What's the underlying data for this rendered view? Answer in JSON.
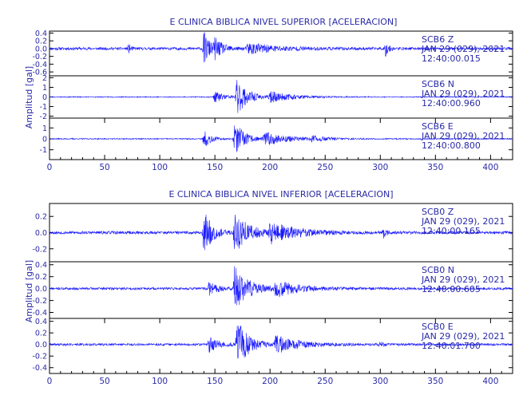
{
  "colors": {
    "trace": "#1a1aff",
    "text": "#2a2aa8",
    "axis": "#000000"
  },
  "chart_data": [
    {
      "type": "line",
      "title": "E CLINICA BIBLICA NIVEL SUPERIOR [ACELERACION]",
      "ylabel": "Amplitud [gal]",
      "xlim": [
        0,
        420
      ],
      "x_ticks": [
        0,
        50,
        100,
        150,
        200,
        250,
        300,
        350,
        400
      ],
      "series": [
        {
          "name": "SCB6 Z",
          "station": "SCB6",
          "component": "Z",
          "date": "JAN 29 (029), 2021",
          "time": "12:40:00.015",
          "ylim": [
            -0.7,
            0.45
          ],
          "y_ticks": [
            {
              "v": 0.4,
              "label": "0.4"
            },
            {
              "v": 0.2,
              "label": "0.2"
            },
            {
              "v": 0.0,
              "label": "0.0"
            },
            {
              "v": -0.2,
              "label": "-0.2"
            },
            {
              "v": -0.4,
              "label": "-0.4"
            },
            {
              "v": -0.6,
              "label": "-0.6"
            }
          ],
          "noise": 0.035,
          "peak": 0.42,
          "bursts": [
            {
              "x": 140,
              "a": 0.42,
              "w": 6
            },
            {
              "x": 150,
              "a": 0.2,
              "w": 8
            },
            {
              "x": 180,
              "a": 0.14,
              "w": 25
            },
            {
              "x": 305,
              "a": 0.2,
              "w": 2.5
            },
            {
              "x": 72,
              "a": 0.1,
              "w": 2
            }
          ],
          "seed": 11
        },
        {
          "name": "SCB6 N",
          "station": "SCB6",
          "component": "N",
          "date": "JAN 29 (029), 2021",
          "time": "12:40:00.960",
          "ylim": [
            -2.2,
            2.2
          ],
          "y_ticks": [
            {
              "v": 2,
              "label": "2"
            },
            {
              "v": 1,
              "label": "1"
            },
            {
              "v": 0,
              "label": "0"
            },
            {
              "v": -1,
              "label": "-1"
            },
            {
              "v": -2,
              "label": "-2"
            }
          ],
          "noise": 0.05,
          "peak": 1.8,
          "bursts": [
            {
              "x": 170,
              "a": 1.8,
              "w": 10
            },
            {
              "x": 150,
              "a": 0.6,
              "w": 10
            },
            {
              "x": 200,
              "a": 0.5,
              "w": 22
            }
          ],
          "seed": 23
        },
        {
          "name": "SCB6 E",
          "station": "SCB6",
          "component": "E",
          "date": "JAN 29 (029), 2021",
          "time": "12:40:00.800",
          "ylim": [
            -1.9,
            1.9
          ],
          "y_ticks": [
            {
              "v": 1,
              "label": "1"
            },
            {
              "v": 0,
              "label": "0"
            },
            {
              "v": -1,
              "label": "-1"
            }
          ],
          "noise": 0.05,
          "peak": 1.6,
          "bursts": [
            {
              "x": 168,
              "a": 1.6,
              "w": 9
            },
            {
              "x": 140,
              "a": 0.9,
              "w": 6
            },
            {
              "x": 195,
              "a": 0.6,
              "w": 22
            },
            {
              "x": 238,
              "a": 0.25,
              "w": 12
            }
          ],
          "seed": 37
        }
      ]
    },
    {
      "type": "line",
      "title": "E CLINICA BIBLICA NIVEL INFERIOR [ACELERACION]",
      "ylabel": "Amplitud [gal]",
      "xlim": [
        0,
        420
      ],
      "x_ticks": [
        0,
        50,
        100,
        150,
        200,
        250,
        300,
        350,
        400
      ],
      "series": [
        {
          "name": "SCB0 Z",
          "station": "SCB0",
          "component": "Z",
          "date": "JAN 29 (029), 2021",
          "time": "12:40:00.165",
          "ylim": [
            -0.36,
            0.36
          ],
          "y_ticks": [
            {
              "v": 0.2,
              "label": "0.2"
            },
            {
              "v": 0.0,
              "label": "0.0"
            },
            {
              "v": -0.2,
              "label": "-0.2"
            }
          ],
          "noise": 0.018,
          "peak": 0.3,
          "bursts": [
            {
              "x": 140,
              "a": 0.3,
              "w": 7
            },
            {
              "x": 168,
              "a": 0.26,
              "w": 12
            },
            {
              "x": 200,
              "a": 0.12,
              "w": 25
            },
            {
              "x": 303,
              "a": 0.07,
              "w": 2.5
            }
          ],
          "seed": 53
        },
        {
          "name": "SCB0 N",
          "station": "SCB0",
          "component": "N",
          "date": "JAN 29 (029), 2021",
          "time": "12:40:00.605",
          "ylim": [
            -0.5,
            0.45
          ],
          "y_ticks": [
            {
              "v": 0.4,
              "label": "0.4"
            },
            {
              "v": 0.2,
              "label": "0.2"
            },
            {
              "v": 0.0,
              "label": "0.0"
            },
            {
              "v": -0.2,
              "label": "-0.2"
            },
            {
              "v": -0.4,
              "label": "-0.4"
            }
          ],
          "noise": 0.02,
          "peak": 0.38,
          "bursts": [
            {
              "x": 168,
              "a": 0.38,
              "w": 12
            },
            {
              "x": 145,
              "a": 0.12,
              "w": 8
            },
            {
              "x": 205,
              "a": 0.13,
              "w": 22
            }
          ],
          "seed": 71
        },
        {
          "name": "SCB0 E",
          "station": "SCB0",
          "component": "E",
          "date": "JAN 29 (029), 2021",
          "time": "12:40:01.700",
          "ylim": [
            -0.5,
            0.45
          ],
          "y_ticks": [
            {
              "v": 0.4,
              "label": "0.4"
            },
            {
              "v": 0.2,
              "label": "0.2"
            },
            {
              "v": 0.0,
              "label": "0.0"
            },
            {
              "v": -0.2,
              "label": "-0.2"
            },
            {
              "v": -0.4,
              "label": "-0.4"
            }
          ],
          "noise": 0.02,
          "peak": 0.45,
          "bursts": [
            {
              "x": 170,
              "a": 0.45,
              "w": 10
            },
            {
              "x": 145,
              "a": 0.14,
              "w": 8
            },
            {
              "x": 205,
              "a": 0.14,
              "w": 22
            },
            {
              "x": 300,
              "a": 0.04,
              "w": 3
            }
          ],
          "seed": 89
        }
      ]
    }
  ]
}
